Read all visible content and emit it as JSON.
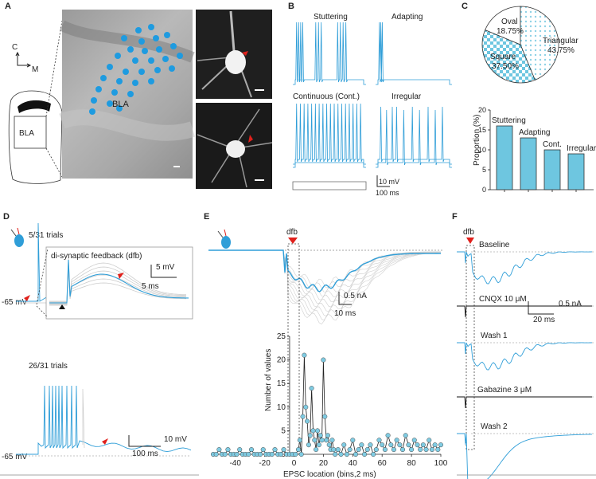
{
  "panels": {
    "A": {
      "letter": "A",
      "compass_c": "C",
      "compass_m": "M",
      "schematic_label": "BLA",
      "micrograph_label": "BLA"
    },
    "B": {
      "letter": "B",
      "traces": {
        "stuttering": "Stuttering",
        "adapting": "Adapting",
        "continuous": "Continuous (Cont.)",
        "irregular": "Irregular"
      },
      "scale_voltage": "10 mV",
      "scale_time": "100 ms"
    },
    "C": {
      "letter": "C"
    },
    "D": {
      "letter": "D",
      "top_trials": "5/31 trials",
      "inset_title": "di-synaptic feedback (dfb)",
      "inset_scale_v": "5 mV",
      "inset_scale_t": "5 ms",
      "top_rest": "-65 mV",
      "bottom_trials": "26/31 trials",
      "bottom_scale_v": "10 mV",
      "bottom_scale_t": "100 ms",
      "bottom_rest": "-65 mV"
    },
    "E": {
      "letter": "E",
      "dfb_label": "dfb",
      "scale_i": "0.5 nA",
      "scale_t": "10 ms"
    },
    "F": {
      "letter": "F",
      "dfb_label": "dfb",
      "conditions": {
        "baseline": "Baseline",
        "cnqx": "CNQX 10 μM",
        "wash1": "Wash 1",
        "gabazine": "Gabazine 3 μM",
        "wash2": "Wash 2"
      },
      "scale_i": "0.5 nA",
      "scale_t": "20 ms"
    }
  },
  "colors": {
    "trace_blue": "#2f9ed8",
    "dot_blue": "#1e9be0",
    "bar_fill": "#6ec6e0",
    "marker_red": "#e0201b"
  },
  "chart_data": [
    {
      "type": "pie",
      "panel": "C",
      "labels": [
        "Oval",
        "Triangular",
        "Square"
      ],
      "values": [
        18.75,
        43.75,
        37.5
      ],
      "value_labels": [
        "18.75%",
        "43.75%",
        "37.50%"
      ]
    },
    {
      "type": "bar",
      "panel": "C",
      "categories": [
        "Stuttering",
        "Adapting",
        "Cont.",
        "Irregular"
      ],
      "values": [
        16,
        13,
        10,
        9
      ],
      "ylabel": "Proportion (%)",
      "ylim": [
        0,
        20
      ],
      "yticks": [
        0,
        5,
        10,
        15,
        20
      ]
    },
    {
      "type": "line",
      "panel": "E",
      "xlabel": "EPSC location (bins,2 ms)",
      "ylabel": "Number of values",
      "xlim": [
        -55,
        100
      ],
      "ylim": [
        0,
        25
      ],
      "xticks": [
        -40,
        -20,
        0,
        20,
        40,
        60,
        80,
        100
      ],
      "yticks": [
        0,
        5,
        10,
        15,
        20,
        25
      ],
      "x": [
        -55,
        -53,
        -51,
        -49,
        -47,
        -45,
        -43,
        -41,
        -39,
        -37,
        -35,
        -33,
        -31,
        -29,
        -27,
        -25,
        -23,
        -21,
        -19,
        -17,
        -15,
        -13,
        -11,
        -9,
        -7,
        -5,
        -3,
        -1,
        1,
        3,
        4,
        5,
        6,
        7,
        8,
        9,
        10,
        11,
        12,
        13,
        14,
        15,
        16,
        17,
        18,
        19,
        20,
        21,
        22,
        23,
        24,
        25,
        26,
        27,
        28,
        30,
        32,
        34,
        36,
        38,
        40,
        42,
        44,
        46,
        48,
        50,
        52,
        54,
        56,
        58,
        60,
        62,
        64,
        66,
        68,
        70,
        72,
        74,
        76,
        78,
        80,
        82,
        84,
        86,
        88,
        90,
        92,
        94,
        96,
        98,
        100
      ],
      "y": [
        0,
        0,
        1,
        0,
        0,
        1,
        0,
        0,
        0,
        1,
        0,
        0,
        0,
        1,
        0,
        0,
        0,
        1,
        0,
        0,
        0,
        1,
        0,
        0,
        1,
        0,
        0,
        0,
        0,
        1,
        3,
        0,
        8,
        21,
        10,
        7,
        2,
        4,
        14,
        5,
        3,
        1,
        5,
        2,
        4,
        3,
        20,
        8,
        3,
        4,
        2,
        1,
        3,
        1,
        0,
        1,
        0,
        2,
        0,
        1,
        3,
        0,
        1,
        2,
        0,
        1,
        2,
        0,
        1,
        3,
        2,
        1,
        4,
        2,
        1,
        3,
        2,
        1,
        4,
        2,
        1,
        3,
        2,
        1,
        2,
        1,
        3,
        1,
        2,
        1,
        2
      ]
    }
  ]
}
